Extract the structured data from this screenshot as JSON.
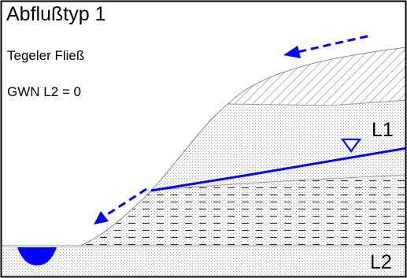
{
  "diagram": {
    "title": "Abflußtyp 1",
    "subtitle": "Tegeler Fließ",
    "gwn_note": "GWN L2 = 0",
    "layer_upper_label": "L1",
    "layer_lower_label": "L2"
  },
  "colors": {
    "border": "#000000",
    "water": "#0000ff",
    "flow_arrow": "#0000ff",
    "layer_outline": "#9a9a9a",
    "hatch": "#6e6e6e",
    "dashes": "#303030",
    "stipple": "#9c9c9c"
  },
  "icons": {
    "water_table_marker": "inverted-triangle",
    "flow_direction": "dashed-arrow"
  }
}
